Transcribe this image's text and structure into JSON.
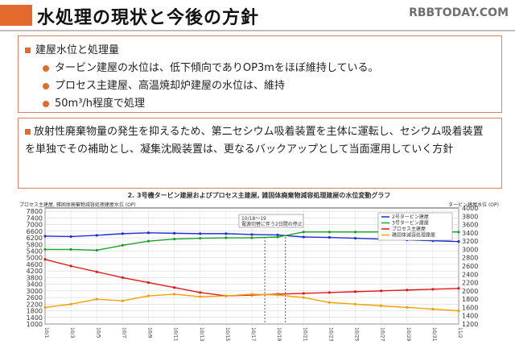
{
  "header": {
    "title": "水処理の現状と今後の方針",
    "watermark": "RBBTODAY.COM",
    "accent_color": "#e36a2c"
  },
  "section1": {
    "heading": "建屋水位と処理量",
    "items": [
      "タービン建屋の水位は、低下傾向でありOP3mをほぼ維持している。",
      "プロセス主建屋、高温焼却炉建屋の水位は、維持",
      "50m³/h程度で処理"
    ]
  },
  "section2": {
    "text": "放射性廃棄物量の発生を抑えるため、第二セシウム吸着装置を主体に運転し、セシウム吸着装置を単独でその補助とし、凝集沈殿装置は、更なるバックアップとして当面運用していく方針"
  },
  "chart_data": {
    "type": "line",
    "title": "2. 3号機タービン建屋およびプロセス主建屋, 雑固体廃棄物減容処理建屋の水位変動グラフ",
    "ylabel_left": "プロセス主建屋, 雑固体廃棄物減容処理建屋水位 (OP)",
    "ylabel_right": "タービン建屋水位 (OP)",
    "ylim_left": [
      1000,
      8000
    ],
    "ylim_right": [
      1200,
      4000
    ],
    "yticks_left": [
      1000,
      1400,
      1800,
      2200,
      2600,
      3000,
      3400,
      3800,
      4200,
      4600,
      5000,
      5400,
      5800,
      6200,
      6600,
      7000,
      7400,
      7800
    ],
    "yticks_right": [
      1200,
      1400,
      1600,
      1800,
      2000,
      2200,
      2400,
      2600,
      2800,
      3000,
      3200,
      3400,
      3600,
      3800,
      4000
    ],
    "x": [
      "10/1",
      "10/3",
      "10/5",
      "10/7",
      "10/9",
      "10/11",
      "10/13",
      "10/15",
      "10/17",
      "10/19",
      "10/21",
      "10/23",
      "10/25",
      "10/27",
      "10/29",
      "10/31",
      "11/2"
    ],
    "annotation": "10/18～19 電源切替に伴う2日間の停止",
    "grid": true,
    "legend_position": "top-right",
    "series": [
      {
        "name": "2号タービン建屋",
        "color": "#1f2fd6",
        "axis": "right",
        "values": [
          3320,
          3310,
          3340,
          3380,
          3400,
          3390,
          3380,
          3380,
          3360,
          3350,
          3300,
          3290,
          3270,
          3250,
          3230,
          3210,
          3190
        ]
      },
      {
        "name": "3号タービン建屋",
        "color": "#1aa12a",
        "axis": "right",
        "values": [
          3000,
          3000,
          2980,
          3100,
          3200,
          3250,
          3270,
          3280,
          3280,
          3300,
          3420,
          3420,
          3420,
          3420,
          3420,
          3420,
          3420
        ]
      },
      {
        "name": "プロセス主建屋",
        "color": "#e01818",
        "axis": "left",
        "values": [
          4900,
          4500,
          4150,
          3800,
          3500,
          3200,
          2900,
          2700,
          2750,
          2800,
          2850,
          2900,
          2950,
          3000,
          3050,
          3100,
          3150
        ]
      },
      {
        "name": "雑固体減容処理建屋",
        "color": "#f2a100",
        "axis": "left",
        "values": [
          2000,
          2200,
          2500,
          2400,
          2700,
          2800,
          2650,
          2700,
          2800,
          2750,
          2600,
          2300,
          2200,
          2100,
          2000,
          1900,
          1800
        ]
      }
    ]
  }
}
